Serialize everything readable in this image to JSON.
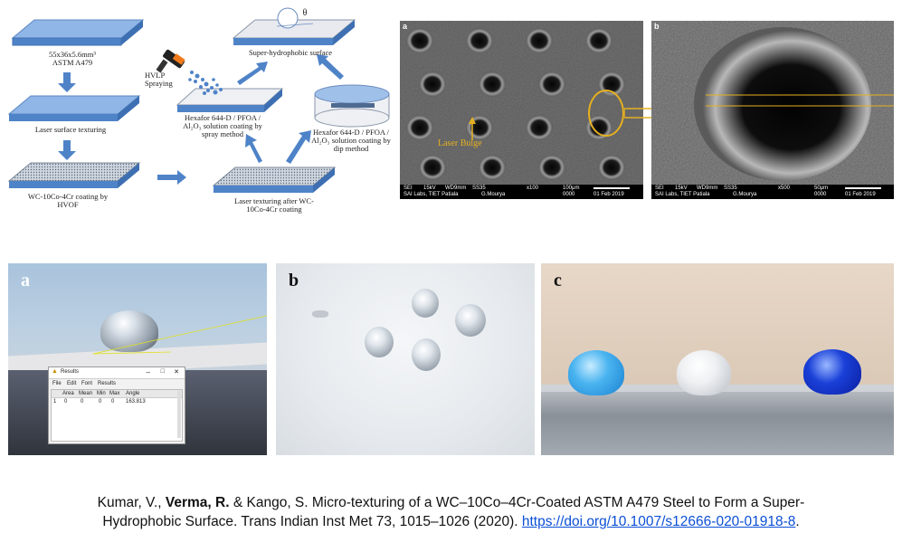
{
  "flowchart": {
    "substrate": "55x36x5.6mm³\nASTM A479",
    "laser_texturing": "Laser surface texturing",
    "coating": "WC-10Co-4Cr coating by\nHVOF",
    "laser_after_coating": "Laser texturing after WC-\n10Co-4Cr coating",
    "hvlp": "HVLP\nSpraying",
    "spray_method": "Hexafor 644-D / PFOA /\nAl₂O₃ solution coating by\nspray method",
    "dip_method": "Hexafor 644-D / PFOA /\nAl₂O₃ solution coating by\ndip method",
    "superhydrophobic": "Super-hydrophobic surface",
    "theta": "θ"
  },
  "sem_a": {
    "letter": "a",
    "annotation": "Laser Bulge",
    "bar": {
      "mode": "SEI",
      "kv": "15kV",
      "wd": "WD9mm",
      "ss": "SS35",
      "mag": "x100",
      "scale": "100μm",
      "lab": "SAI Labs, TIET Patiala",
      "operator": "G.Mourya",
      "code": "0000",
      "date": "01 Feb 2019"
    }
  },
  "sem_b": {
    "letter": "b",
    "bar": {
      "mode": "SEI",
      "kv": "15kV",
      "wd": "WD9mm",
      "ss": "SS35",
      "mag": "x500",
      "scale": "50μm",
      "lab": "SAI Labs, TIET Patiala",
      "operator": "G.Mourya",
      "code": "0000",
      "date": "01 Feb 2019"
    }
  },
  "photo_a": {
    "letter": "a",
    "window": {
      "title": "Results",
      "menu": [
        "File",
        "Edit",
        "Font",
        "Results"
      ],
      "headers": [
        "",
        "Area",
        "Mean",
        "Min",
        "Max",
        "Angle"
      ],
      "row": [
        "1",
        "0",
        "0",
        "0",
        "0",
        "163.813"
      ]
    }
  },
  "photo_b": {
    "letter": "b"
  },
  "photo_c": {
    "letter": "c"
  },
  "citation": {
    "before_bold": "Kumar, V., ",
    "bold": "Verma, R.",
    "after_bold": " & Kango, S. Micro-texturing of a WC–10Co–4Cr-Coated ASTM A479 Steel to Form a Super-",
    "line2": "Hydrophobic Surface. Trans Indian Inst Met 73, 1015–1026 (2020). ",
    "link": "https://doi.org/10.1007/s12666-020-01918-8",
    "end": "."
  }
}
